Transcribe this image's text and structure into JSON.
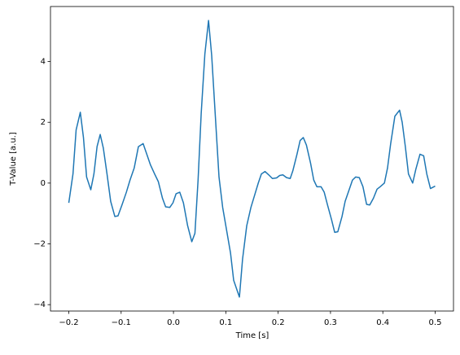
{
  "chart_data": {
    "type": "line",
    "xlabel": "Time [s]",
    "ylabel": "T-Value [a.u.]",
    "x": [
      -0.2,
      -0.192,
      -0.186,
      -0.178,
      -0.172,
      -0.166,
      -0.158,
      -0.152,
      -0.146,
      -0.14,
      -0.134,
      -0.127,
      -0.12,
      -0.112,
      -0.106,
      -0.098,
      -0.09,
      -0.083,
      -0.075,
      -0.067,
      -0.058,
      -0.052,
      -0.044,
      -0.036,
      -0.029,
      -0.021,
      -0.015,
      -0.007,
      -0.001,
      0.005,
      0.012,
      0.019,
      0.027,
      0.035,
      0.041,
      0.047,
      0.053,
      0.06,
      0.067,
      0.073,
      0.08,
      0.087,
      0.094,
      0.101,
      0.109,
      0.115,
      0.126,
      0.132,
      0.14,
      0.148,
      0.155,
      0.162,
      0.168,
      0.175,
      0.182,
      0.189,
      0.197,
      0.203,
      0.209,
      0.216,
      0.223,
      0.228,
      0.236,
      0.242,
      0.248,
      0.254,
      0.262,
      0.268,
      0.274,
      0.282,
      0.288,
      0.294,
      0.302,
      0.308,
      0.314,
      0.322,
      0.328,
      0.336,
      0.342,
      0.348,
      0.355,
      0.362,
      0.369,
      0.375,
      0.382,
      0.389,
      0.395,
      0.403,
      0.409,
      0.415,
      0.423,
      0.432,
      0.437,
      0.443,
      0.449,
      0.457,
      0.463,
      0.471,
      0.478,
      0.484,
      0.491,
      0.5
    ],
    "series": [
      {
        "color": "#1f77b4",
        "values": [
          -0.65,
          0.3,
          1.75,
          2.33,
          1.5,
          0.2,
          -0.22,
          0.3,
          1.2,
          1.6,
          1.15,
          0.3,
          -0.6,
          -1.1,
          -1.08,
          -0.7,
          -0.3,
          0.1,
          0.5,
          1.2,
          1.3,
          1.0,
          0.6,
          0.3,
          0.05,
          -0.5,
          -0.78,
          -0.8,
          -0.65,
          -0.35,
          -0.3,
          -0.65,
          -1.4,
          -1.93,
          -1.65,
          0.1,
          2.3,
          4.25,
          5.35,
          4.2,
          2.2,
          0.2,
          -0.8,
          -1.5,
          -2.3,
          -3.2,
          -3.75,
          -2.5,
          -1.4,
          -0.8,
          -0.4,
          0.0,
          0.3,
          0.38,
          0.27,
          0.15,
          0.17,
          0.25,
          0.27,
          0.18,
          0.15,
          0.4,
          0.95,
          1.4,
          1.5,
          1.25,
          0.65,
          0.1,
          -0.12,
          -0.12,
          -0.3,
          -0.7,
          -1.2,
          -1.62,
          -1.6,
          -1.1,
          -0.6,
          -0.2,
          0.1,
          0.2,
          0.18,
          -0.12,
          -0.7,
          -0.72,
          -0.5,
          -0.2,
          -0.12,
          0.0,
          0.5,
          1.3,
          2.2,
          2.4,
          2.0,
          1.2,
          0.3,
          0.0,
          0.45,
          0.95,
          0.9,
          0.3,
          -0.18,
          -0.1
        ]
      }
    ],
    "xlim": [
      -0.235,
      0.535
    ],
    "ylim": [
      -4.21,
      5.81
    ],
    "xticks": [
      {
        "value": -0.2,
        "label": "−0.2"
      },
      {
        "value": -0.1,
        "label": "−0.1"
      },
      {
        "value": 0,
        "label": "0.0"
      },
      0.1,
      0.2,
      0.3,
      0.4,
      0.5
    ],
    "yticks": [
      {
        "value": -4,
        "label": "−4"
      },
      {
        "value": -2,
        "label": "−2"
      },
      0,
      2,
      4
    ]
  }
}
